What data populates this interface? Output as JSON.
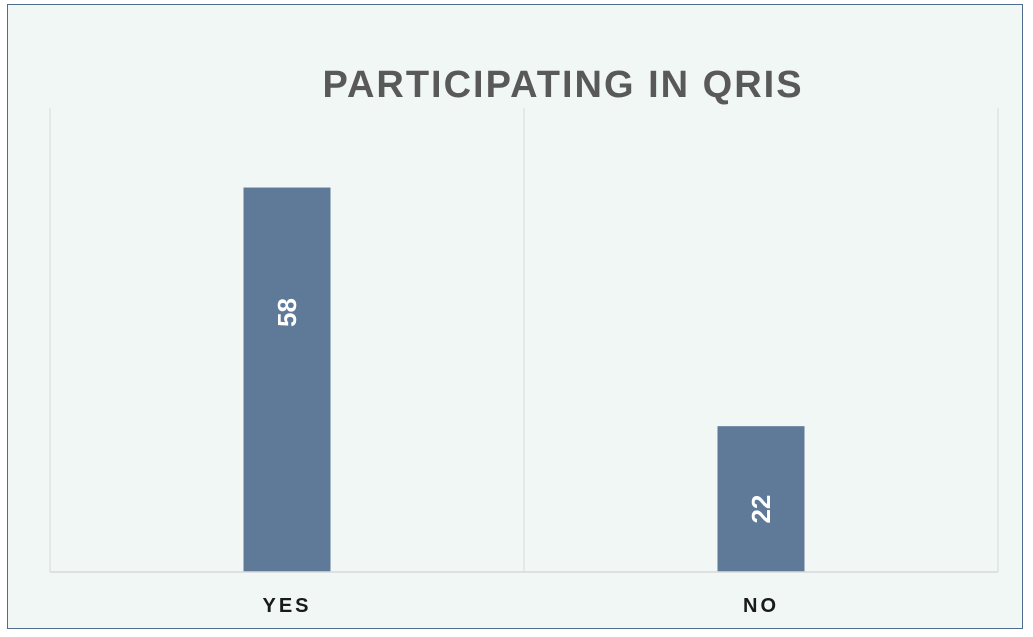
{
  "chart_data": {
    "type": "bar",
    "title": "PARTICIPATING IN QRIS",
    "xlabel": "",
    "ylabel": "",
    "categories": [
      "YES",
      "NO"
    ],
    "values": [
      58,
      22
    ],
    "data_labels": [
      "58",
      "22"
    ],
    "ylim": [
      0,
      70
    ],
    "grid": "vertical category separators",
    "legend": "none",
    "data_label_orientation": "rotated vertical, inside bar"
  },
  "colors": {
    "bar": "#5e7a98",
    "background": "#f0f7f4",
    "border": "#4f6d8f",
    "title": "#595959",
    "axis_text": "#1a1a1a",
    "data_label": "#ffffff",
    "gridline": "#d9d9d9"
  }
}
